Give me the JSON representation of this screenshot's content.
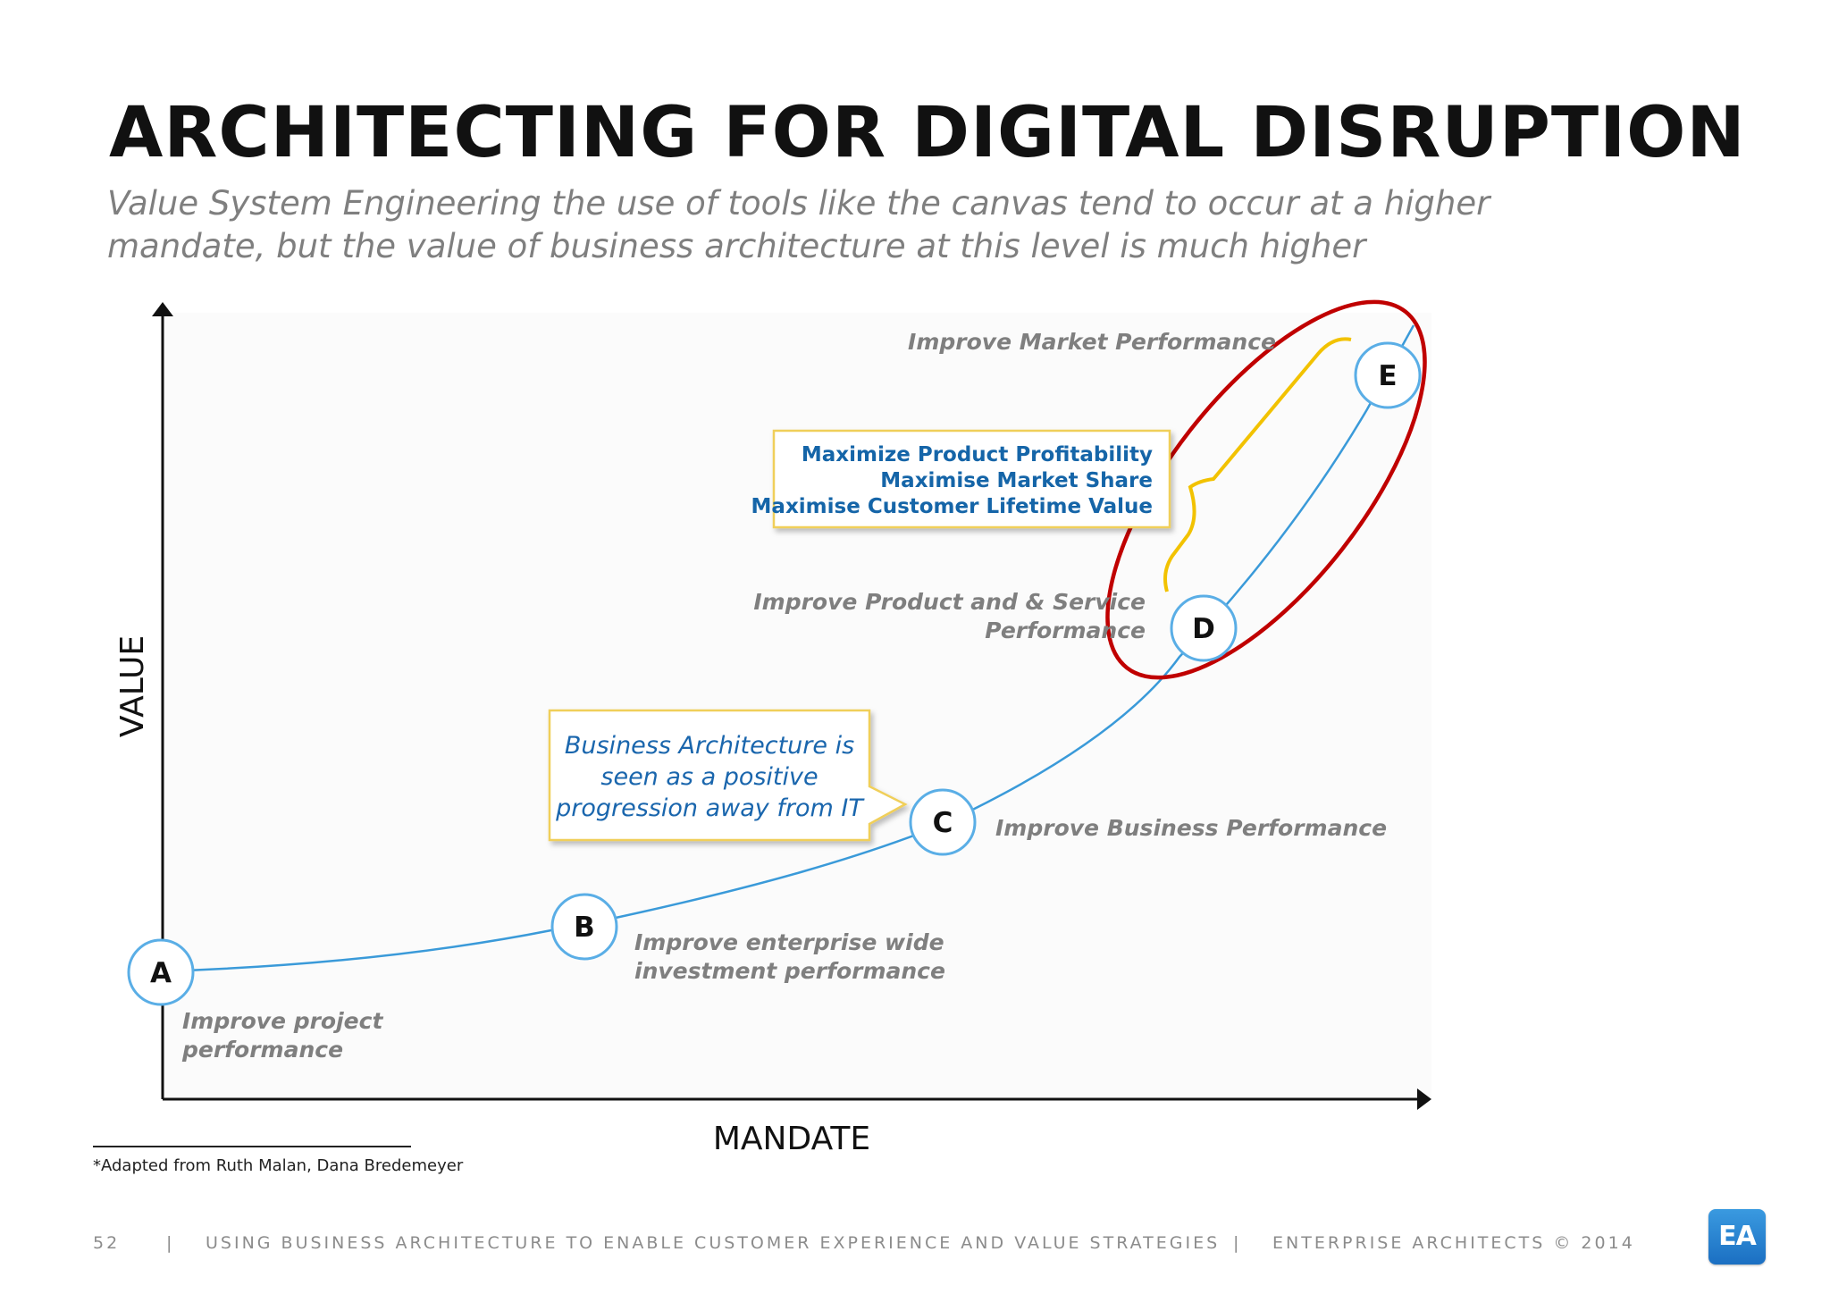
{
  "title": "ARCHITECTING FOR DIGITAL DISRUPTION",
  "subtitle": {
    "line1": "Value System Engineering the use of tools like the canvas tend to occur at a higher",
    "line2": "mandate, but the value of business architecture at this level is much higher"
  },
  "axes": {
    "y_label": "VALUE",
    "x_label": "MANDATE"
  },
  "nodes": {
    "a": {
      "letter": "A",
      "label_line1": "Improve project",
      "label_line2": "performance"
    },
    "b": {
      "letter": "B",
      "label_line1": "Improve enterprise wide",
      "label_line2": "investment performance"
    },
    "c": {
      "letter": "C",
      "label": "Improve Business Performance"
    },
    "d": {
      "letter": "D",
      "label_line1": "Improve Product and & Service",
      "label_line2": "Performance"
    },
    "e": {
      "letter": "E",
      "label": "Improve Market Performance"
    }
  },
  "callout": {
    "line1": "Business Architecture is",
    "line2": "seen as a positive",
    "line3": "progression away from IT"
  },
  "objectives_box": {
    "line1": "Maximize Product Profitability",
    "line2": "Maximise Market Share",
    "line3": "Maximise Customer Lifetime Value"
  },
  "footnote": "*Adapted from Ruth Malan, Dana Bredemeyer",
  "footer": {
    "page": "52",
    "separator": "|",
    "course": "USING BUSINESS ARCHITECTURE TO ENABLE CUSTOMER EXPERIENCE AND VALUE STRATEGIES",
    "copyright": "ENTERPRISE ARCHITECTS © 2014"
  },
  "logo": "EA",
  "colors": {
    "curve": "#3a9ad9",
    "node_border": "#5aaee6",
    "highlight_ellipse": "#c00000",
    "brace": "#f2c200",
    "box_border": "#f0cf5a",
    "label_gray": "#7f7f7f",
    "label_blue": "#1565a8"
  }
}
